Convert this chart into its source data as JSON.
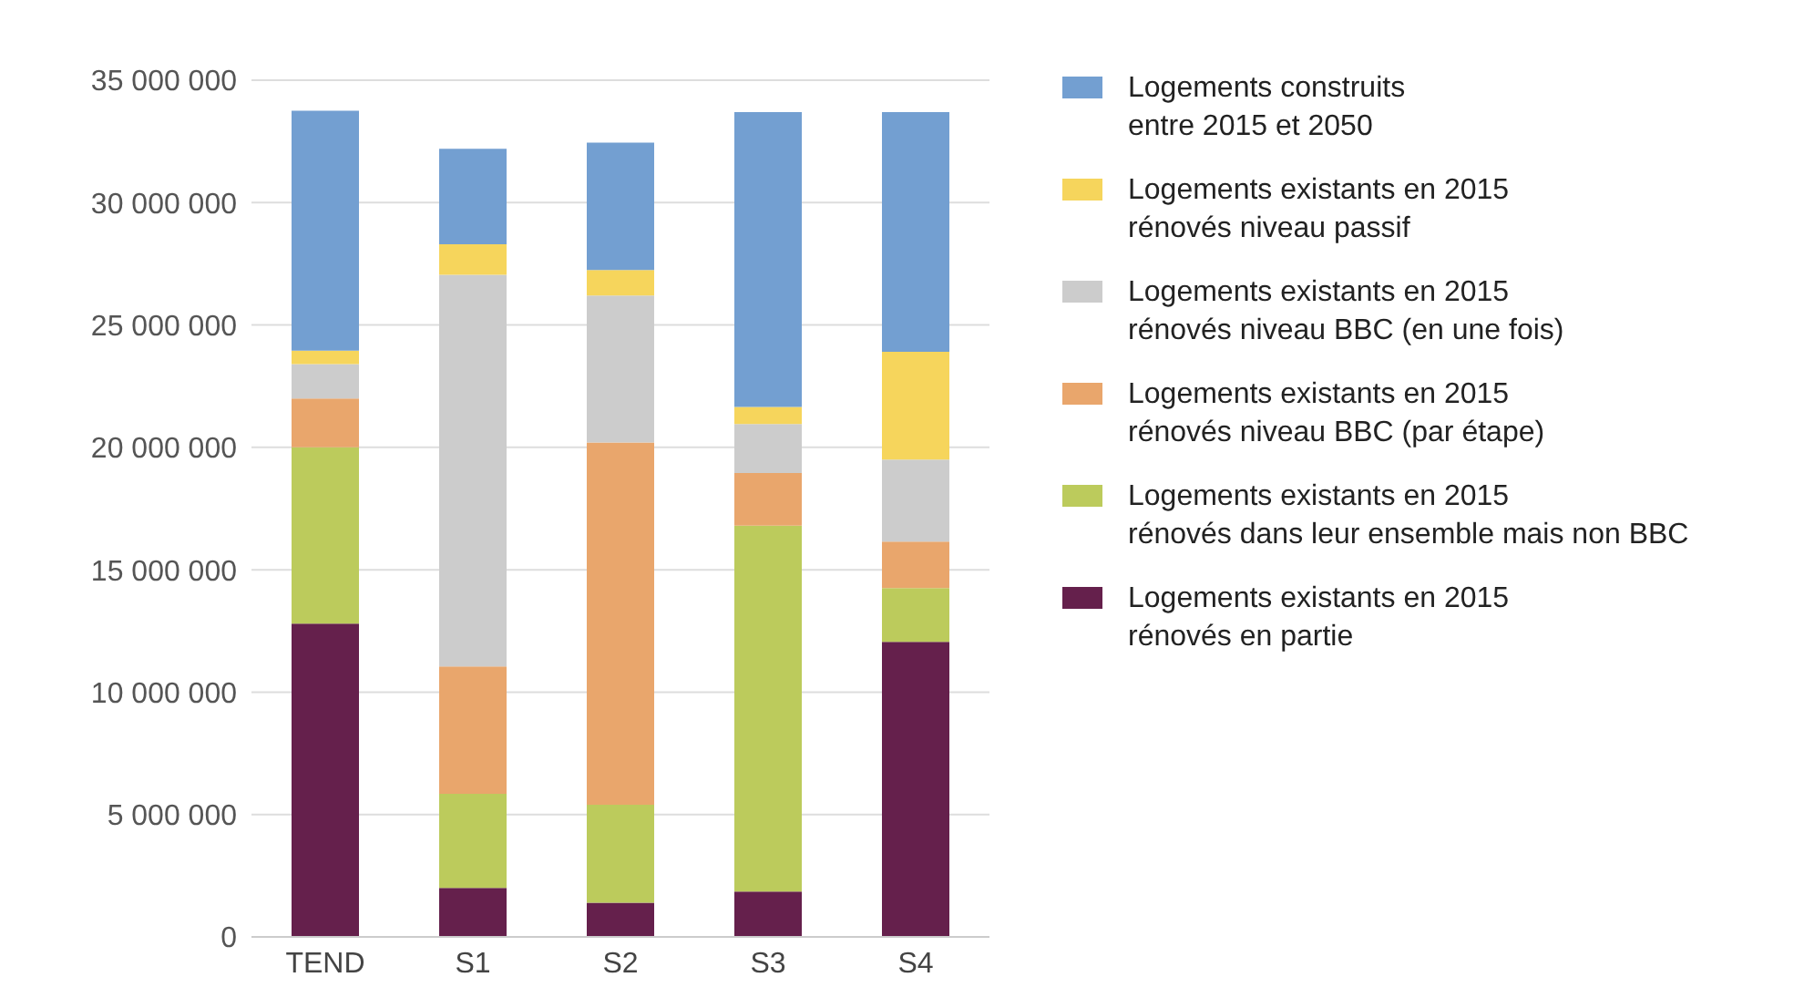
{
  "chart_data": {
    "type": "bar",
    "stacked": true,
    "categories": [
      "TEND",
      "S1",
      "S2",
      "S3",
      "S4"
    ],
    "series": [
      {
        "name": "Logements existants en 2015\nrénovés en partie",
        "color": "#65204c",
        "values": [
          12800000,
          2000000,
          1400000,
          1850000,
          12050000
        ]
      },
      {
        "name": "Logements existants en 2015\nrénovés dans leur ensemble mais non BBC",
        "color": "#bccb5c",
        "values": [
          7200000,
          3850000,
          4000000,
          14950000,
          2200000
        ]
      },
      {
        "name": "Logements existants en 2015\nrénovés niveau BBC (par étape)",
        "color": "#e9a66c",
        "values": [
          2000000,
          5200000,
          14800000,
          2150000,
          1900000
        ]
      },
      {
        "name": "Logements existants en 2015\nrénovés niveau BBC (en une fois)",
        "color": "#cccccc",
        "values": [
          1400000,
          16000000,
          6000000,
          2000000,
          3350000
        ]
      },
      {
        "name": "Logements existants en 2015\nrénovés niveau passif",
        "color": "#f6d55c",
        "values": [
          550000,
          1250000,
          1050000,
          700000,
          4400000
        ]
      },
      {
        "name": "Logements construits\nentre 2015 et 2050",
        "color": "#739fd1",
        "values": [
          9800000,
          3900000,
          5200000,
          12050000,
          9800000
        ]
      }
    ],
    "ylim": [
      0,
      35000000
    ],
    "yticks": [
      {
        "value": 0,
        "label": "0"
      },
      {
        "value": 5000000,
        "label": "5 000 000"
      },
      {
        "value": 10000000,
        "label": "10 000 000"
      },
      {
        "value": 15000000,
        "label": "15 000 000"
      },
      {
        "value": 20000000,
        "label": "20 000 000"
      },
      {
        "value": 25000000,
        "label": "25 000 000"
      },
      {
        "value": 30000000,
        "label": "30 000 000"
      },
      {
        "value": 35000000,
        "label": "35 000 000"
      }
    ],
    "grid": "y",
    "legend": "right"
  }
}
